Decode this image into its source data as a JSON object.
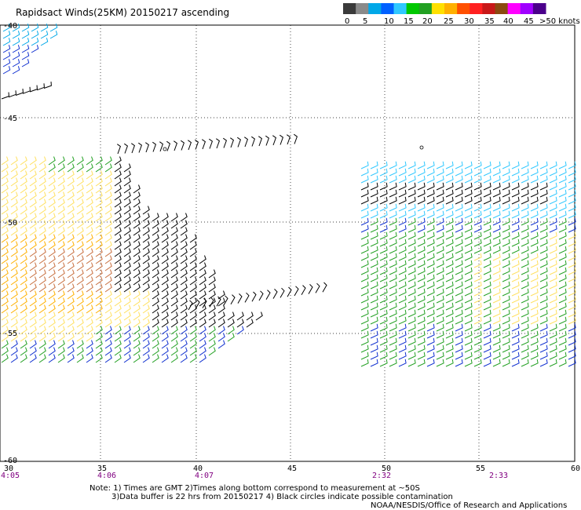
{
  "title": "Rapidsact Winds(25KM) 20150217 ascending",
  "colorbar": {
    "colors": [
      "#3a3a3a",
      "#8a8a8a",
      "#00a8e8",
      "#0060ff",
      "#30c8ff",
      "#00c800",
      "#22a022",
      "#ffe000",
      "#ffb000",
      "#ff5000",
      "#ff2020",
      "#c81818",
      "#8b4a10",
      "#ff00ff",
      "#a000ff",
      "#4b008b"
    ],
    "labels": [
      "0",
      "5",
      "10",
      "15",
      "20",
      "25",
      "30",
      "35",
      "40",
      "45",
      ">50 knots"
    ]
  },
  "axes": {
    "lon_ticks": [
      "30",
      "35",
      "40",
      "45",
      "50",
      "55",
      "60"
    ],
    "lat_ticks": [
      "-40",
      "-45",
      "-50",
      "-55",
      "-60"
    ],
    "pass_times": [
      "4:05",
      "4:06",
      "4:07",
      "2:32",
      "2:33"
    ]
  },
  "notes": {
    "line1": "Note: 1) Times are GMT 2)Times along bottom correspond to measurement at ~50S",
    "line2": "3)Data buffer is 22 hrs from 20150217 4) Black circles indicate possible contamination",
    "line3": "NOAA/NESDIS/Office of Research and Applications"
  }
}
